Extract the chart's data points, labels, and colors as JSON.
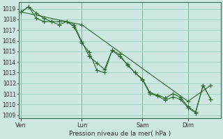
{
  "bg_color": "#cce8e0",
  "grid_color": "#99ccbb",
  "line_color": "#2d6a2d",
  "marker_color": "#2d6a2d",
  "xlabel_text": "Pression niveau de la mer( hPa )",
  "ylim": [
    1009,
    1019.5
  ],
  "yticks": [
    1009,
    1010,
    1011,
    1012,
    1013,
    1014,
    1015,
    1016,
    1017,
    1018,
    1019
  ],
  "xtick_labels": [
    "Ven",
    "Lun",
    "Sam",
    "Dim"
  ],
  "xtick_positions": [
    0,
    8,
    16,
    22
  ],
  "xlim": [
    0,
    26
  ],
  "series1_x": [
    0,
    1,
    2,
    3,
    4,
    5,
    6,
    7,
    8,
    9,
    10,
    11,
    12,
    13,
    14,
    15,
    16,
    17,
    18,
    19,
    20,
    21,
    22,
    23,
    24,
    25
  ],
  "series1_y": [
    1018.7,
    1019.2,
    1018.6,
    1018.1,
    1017.8,
    1017.8,
    1017.8,
    1017.5,
    1015.9,
    1014.5,
    1013.9,
    1013.3,
    1015.1,
    1014.7,
    1013.7,
    1013.0,
    1012.4,
    1011.1,
    1010.9,
    1010.6,
    1011.0,
    1010.7,
    1009.8,
    1009.3,
    1011.8,
    1010.5
  ],
  "series2_x": [
    0,
    1,
    2,
    3,
    4,
    5,
    6,
    7,
    8,
    9,
    10,
    11,
    12,
    13,
    14,
    15,
    16,
    17,
    18,
    19,
    20,
    21,
    22,
    23,
    24,
    25
  ],
  "series2_y": [
    1018.7,
    1019.2,
    1018.1,
    1017.8,
    1017.8,
    1017.5,
    1017.8,
    1017.3,
    1015.8,
    1014.9,
    1013.2,
    1013.0,
    1015.1,
    1014.5,
    1013.8,
    1013.0,
    1012.3,
    1011.0,
    1010.8,
    1010.4,
    1010.7,
    1010.5,
    1009.7,
    1009.2,
    1011.8,
    1010.5
  ],
  "series3_x": [
    0,
    8,
    22,
    25
  ],
  "series3_y": [
    1018.7,
    1017.5,
    1010.3,
    1011.8
  ],
  "vline_positions": [
    0,
    8,
    16,
    22
  ],
  "vline_color": "#3a6a50"
}
